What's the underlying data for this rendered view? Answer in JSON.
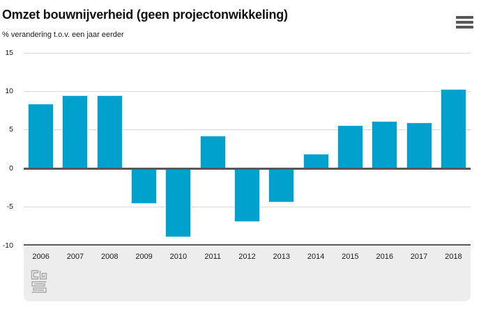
{
  "header": {
    "title": "Omzet bouwnijverheid (geen projectonwikkeling)",
    "subtitle": "% verandering t.o.v. een jaar eerder"
  },
  "chart_data": {
    "type": "bar",
    "title": "Omzet bouwnijverheid (geen projectonwikkeling)",
    "subtitle": "% verandering t.o.v. een jaar eerder",
    "xlabel": "",
    "ylabel": "% verandering t.o.v. een jaar eerder",
    "categories": [
      "2006",
      "2007",
      "2008",
      "2009",
      "2010",
      "2011",
      "2012",
      "2013",
      "2014",
      "2015",
      "2016",
      "2017",
      "2018"
    ],
    "values": [
      8.4,
      9.5,
      9.5,
      -4.6,
      -8.9,
      4.3,
      -6.9,
      -4.4,
      1.9,
      5.6,
      6.2,
      6.0,
      10.3
    ],
    "ylim": [
      -10,
      15
    ],
    "yticks": [
      15,
      10,
      5,
      0,
      -5,
      -10
    ],
    "grid": true,
    "legend": false,
    "bar_color": "#00a1cd",
    "bar_border_color": "#d2ebf4",
    "axis_color": "#58585a",
    "grid_color": "#d9d9d9",
    "band_color": "#ededed"
  },
  "footer": {
    "logo_name": "cbs-logo"
  }
}
